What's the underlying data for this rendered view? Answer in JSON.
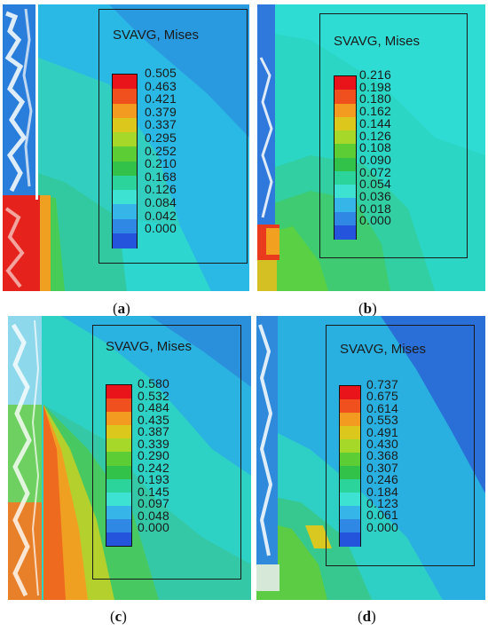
{
  "panels": [
    {
      "id": "a",
      "caption_letter": "a",
      "legend_title": "SVAVG, Mises",
      "legend_values": [
        "0.505",
        "0.463",
        "0.421",
        "0.379",
        "0.337",
        "0.295",
        "0.252",
        "0.210",
        "0.168",
        "0.126",
        "0.084",
        "0.042",
        "0.000"
      ]
    },
    {
      "id": "b",
      "caption_letter": "b",
      "legend_title": "SVAVG, Mises",
      "legend_values": [
        "0.216",
        "0.198",
        "0.180",
        "0.162",
        "0.144",
        "0.126",
        "0.108",
        "0.090",
        "0.072",
        "0.054",
        "0.036",
        "0.018",
        "0.000"
      ]
    },
    {
      "id": "c",
      "caption_letter": "c",
      "legend_title": "SVAVG, Mises",
      "legend_values": [
        "0.580",
        "0.532",
        "0.484",
        "0.435",
        "0.387",
        "0.339",
        "0.290",
        "0.242",
        "0.193",
        "0.145",
        "0.097",
        "0.048",
        "0.000"
      ]
    },
    {
      "id": "d",
      "caption_letter": "d",
      "legend_title": "SVAVG, Mises",
      "legend_values": [
        "0.737",
        "0.675",
        "0.614",
        "0.553",
        "0.491",
        "0.430",
        "0.368",
        "0.307",
        "0.246",
        "0.184",
        "0.123",
        "0.061",
        "0.000"
      ]
    }
  ],
  "colormap": [
    "#e8141a",
    "#f0501e",
    "#f39a20",
    "#dcc81c",
    "#a6d82a",
    "#5ccd34",
    "#32c24a",
    "#2ad49a",
    "#3ee2d2",
    "#36b6e8",
    "#2e88e4",
    "#2454dc",
    "#1426c8"
  ]
}
